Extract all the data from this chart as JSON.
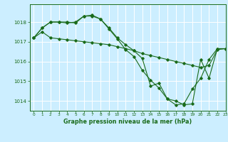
{
  "background_color": "#cceeff",
  "line_color": "#1a6b1a",
  "grid_color": "#ffffff",
  "title": "Graphe pression niveau de la mer (hPa)",
  "xlim": [
    -0.5,
    23
  ],
  "ylim": [
    1013.5,
    1018.9
  ],
  "yticks": [
    1014,
    1015,
    1016,
    1017,
    1018
  ],
  "xticks": [
    0,
    1,
    2,
    3,
    4,
    5,
    6,
    7,
    8,
    9,
    10,
    11,
    12,
    13,
    14,
    15,
    16,
    17,
    18,
    19,
    20,
    21,
    22,
    23
  ],
  "series": [
    {
      "x": [
        0,
        1,
        2,
        3,
        4,
        5,
        6,
        7,
        8,
        9,
        10,
        11,
        12,
        13,
        14,
        15,
        16,
        17,
        18,
        19,
        20,
        21,
        22,
        23
      ],
      "y": [
        1017.2,
        1017.5,
        1017.2,
        1017.15,
        1017.1,
        1017.05,
        1017.0,
        1016.95,
        1016.9,
        1016.85,
        1016.75,
        1016.65,
        1016.55,
        1016.4,
        1016.3,
        1016.2,
        1016.1,
        1016.0,
        1015.9,
        1015.8,
        1015.7,
        1015.8,
        1016.6,
        1016.65
      ]
    },
    {
      "x": [
        0,
        1,
        2,
        3,
        4,
        5,
        6,
        7,
        8,
        9,
        10,
        11,
        12,
        13,
        14,
        15,
        16,
        17,
        18,
        19,
        20,
        21,
        22,
        23
      ],
      "y": [
        1017.2,
        1017.7,
        1018.0,
        1018.0,
        1017.95,
        1018.0,
        1018.3,
        1018.35,
        1018.15,
        1017.65,
        1017.15,
        1016.6,
        1016.25,
        1015.55,
        1015.05,
        1014.65,
        1014.1,
        1013.8,
        1013.85,
        1014.6,
        1015.15,
        1016.1,
        1016.65,
        1016.65
      ]
    },
    {
      "x": [
        0,
        1,
        2,
        3,
        4,
        5,
        6,
        7,
        8,
        9,
        10,
        11,
        12,
        13,
        14,
        15,
        16,
        17,
        18,
        19,
        20,
        21,
        22,
        23
      ],
      "y": [
        1017.2,
        1017.7,
        1018.0,
        1018.0,
        1018.0,
        1017.95,
        1018.3,
        1018.3,
        1018.15,
        1017.7,
        1017.2,
        1016.85,
        1016.55,
        1016.15,
        1014.75,
        1014.9,
        1014.1,
        1014.0,
        1013.8,
        1013.85,
        1016.1,
        1015.15,
        1016.65,
        1016.65
      ]
    }
  ]
}
